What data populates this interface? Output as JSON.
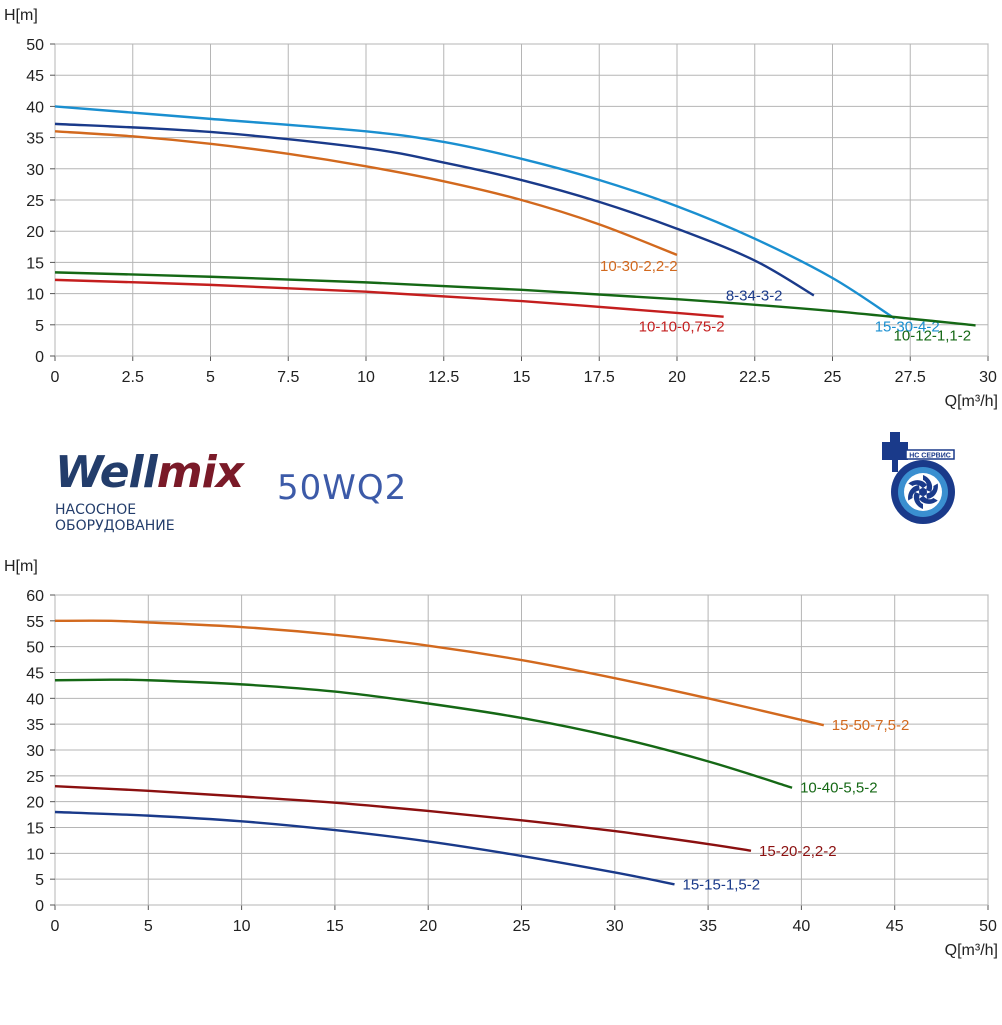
{
  "brand": {
    "logo_left": "Well",
    "logo_right": "mix",
    "model": "50WQ2",
    "subtitle_line1": "НАСОСНОЕ",
    "subtitle_line2": "ОБОРУДОВАНИЕ",
    "service_logo_text": "НС СЕРВИС"
  },
  "chart_data": [
    {
      "type": "line",
      "xlabel": "Q[m³/h]",
      "ylabel": "H[m]",
      "xlim": [
        0,
        30
      ],
      "ylim": [
        0,
        50
      ],
      "xticks": [
        "0",
        "2.5",
        "5",
        "7.5",
        "10",
        "12.5",
        "15",
        "17.5",
        "20",
        "22.5",
        "25",
        "27.5",
        "30"
      ],
      "yticks": [
        "0",
        "5",
        "10",
        "15",
        "20",
        "25",
        "30",
        "35",
        "40",
        "45",
        "50"
      ],
      "grid": true,
      "series": [
        {
          "name": "15-30-4-2",
          "color": "#1a8fd0",
          "x": [
            0,
            5,
            10,
            12.5,
            15,
            17.5,
            20,
            22.5,
            25,
            27
          ],
          "y": [
            40,
            38,
            36,
            34.3,
            31.6,
            28.2,
            24,
            18.8,
            12.5,
            6
          ]
        },
        {
          "name": "8-34-3-2",
          "color": "#1a3a8a",
          "x": [
            0,
            5,
            10,
            12.5,
            15,
            17.5,
            20,
            22.5,
            24.4
          ],
          "y": [
            37.2,
            35.9,
            33.3,
            31,
            28.2,
            24.7,
            20.4,
            15.3,
            9.7
          ]
        },
        {
          "name": "10-30-2,2-2",
          "color": "#d2691e",
          "x": [
            0,
            2.5,
            5,
            7.5,
            10,
            12.5,
            15,
            17.5,
            20
          ],
          "y": [
            36,
            35.2,
            34,
            32.4,
            30.4,
            28,
            25,
            21.1,
            16.2
          ]
        },
        {
          "name": "10-12-1,1-2",
          "color": "#156815",
          "x": [
            0,
            5,
            10,
            15,
            20,
            25,
            29.6
          ],
          "y": [
            13.4,
            12.7,
            11.8,
            10.6,
            9.1,
            7.2,
            4.9
          ]
        },
        {
          "name": "10-10-0,75-2",
          "color": "#c41e1e",
          "x": [
            0,
            5,
            10,
            15,
            20,
            21.5
          ],
          "y": [
            12.2,
            11.4,
            10.3,
            8.8,
            6.9,
            6.3
          ]
        }
      ]
    },
    {
      "type": "line",
      "xlabel": "Q[m³/h]",
      "ylabel": "H[m]",
      "xlim": [
        0,
        50
      ],
      "ylim": [
        0,
        60
      ],
      "xticks": [
        "0",
        "5",
        "10",
        "15",
        "20",
        "25",
        "30",
        "35",
        "40",
        "45",
        "50"
      ],
      "yticks": [
        "0",
        "5",
        "10",
        "15",
        "20",
        "25",
        "30",
        "35",
        "40",
        "45",
        "50",
        "55",
        "60"
      ],
      "grid": true,
      "series": [
        {
          "name": "15-50-7,5-2",
          "color": "#d2691e",
          "x": [
            0,
            3,
            5,
            10,
            15,
            20,
            25,
            30,
            35,
            41.2
          ],
          "y": [
            55,
            55,
            54.7,
            53.8,
            52.3,
            50.2,
            47.4,
            43.9,
            40,
            34.8
          ]
        },
        {
          "name": "10-40-5,5-2",
          "color": "#156815",
          "x": [
            0,
            3,
            5,
            10,
            15,
            20,
            25,
            30,
            35,
            39.5
          ],
          "y": [
            43.5,
            43.6,
            43.5,
            42.7,
            41.3,
            39,
            36.2,
            32.5,
            27.8,
            22.7
          ]
        },
        {
          "name": "15-20-2,2-2",
          "color": "#8b1010",
          "x": [
            0,
            5,
            10,
            15,
            20,
            25,
            30,
            35,
            37.3
          ],
          "y": [
            23,
            22.1,
            21,
            19.8,
            18.2,
            16.4,
            14.3,
            11.8,
            10.5
          ]
        },
        {
          "name": "15-15-1,5-2",
          "color": "#1a3a8a",
          "x": [
            0,
            5,
            10,
            15,
            20,
            25,
            30,
            33.2
          ],
          "y": [
            18,
            17.3,
            16.2,
            14.5,
            12.3,
            9.5,
            6.3,
            4
          ]
        }
      ]
    }
  ]
}
